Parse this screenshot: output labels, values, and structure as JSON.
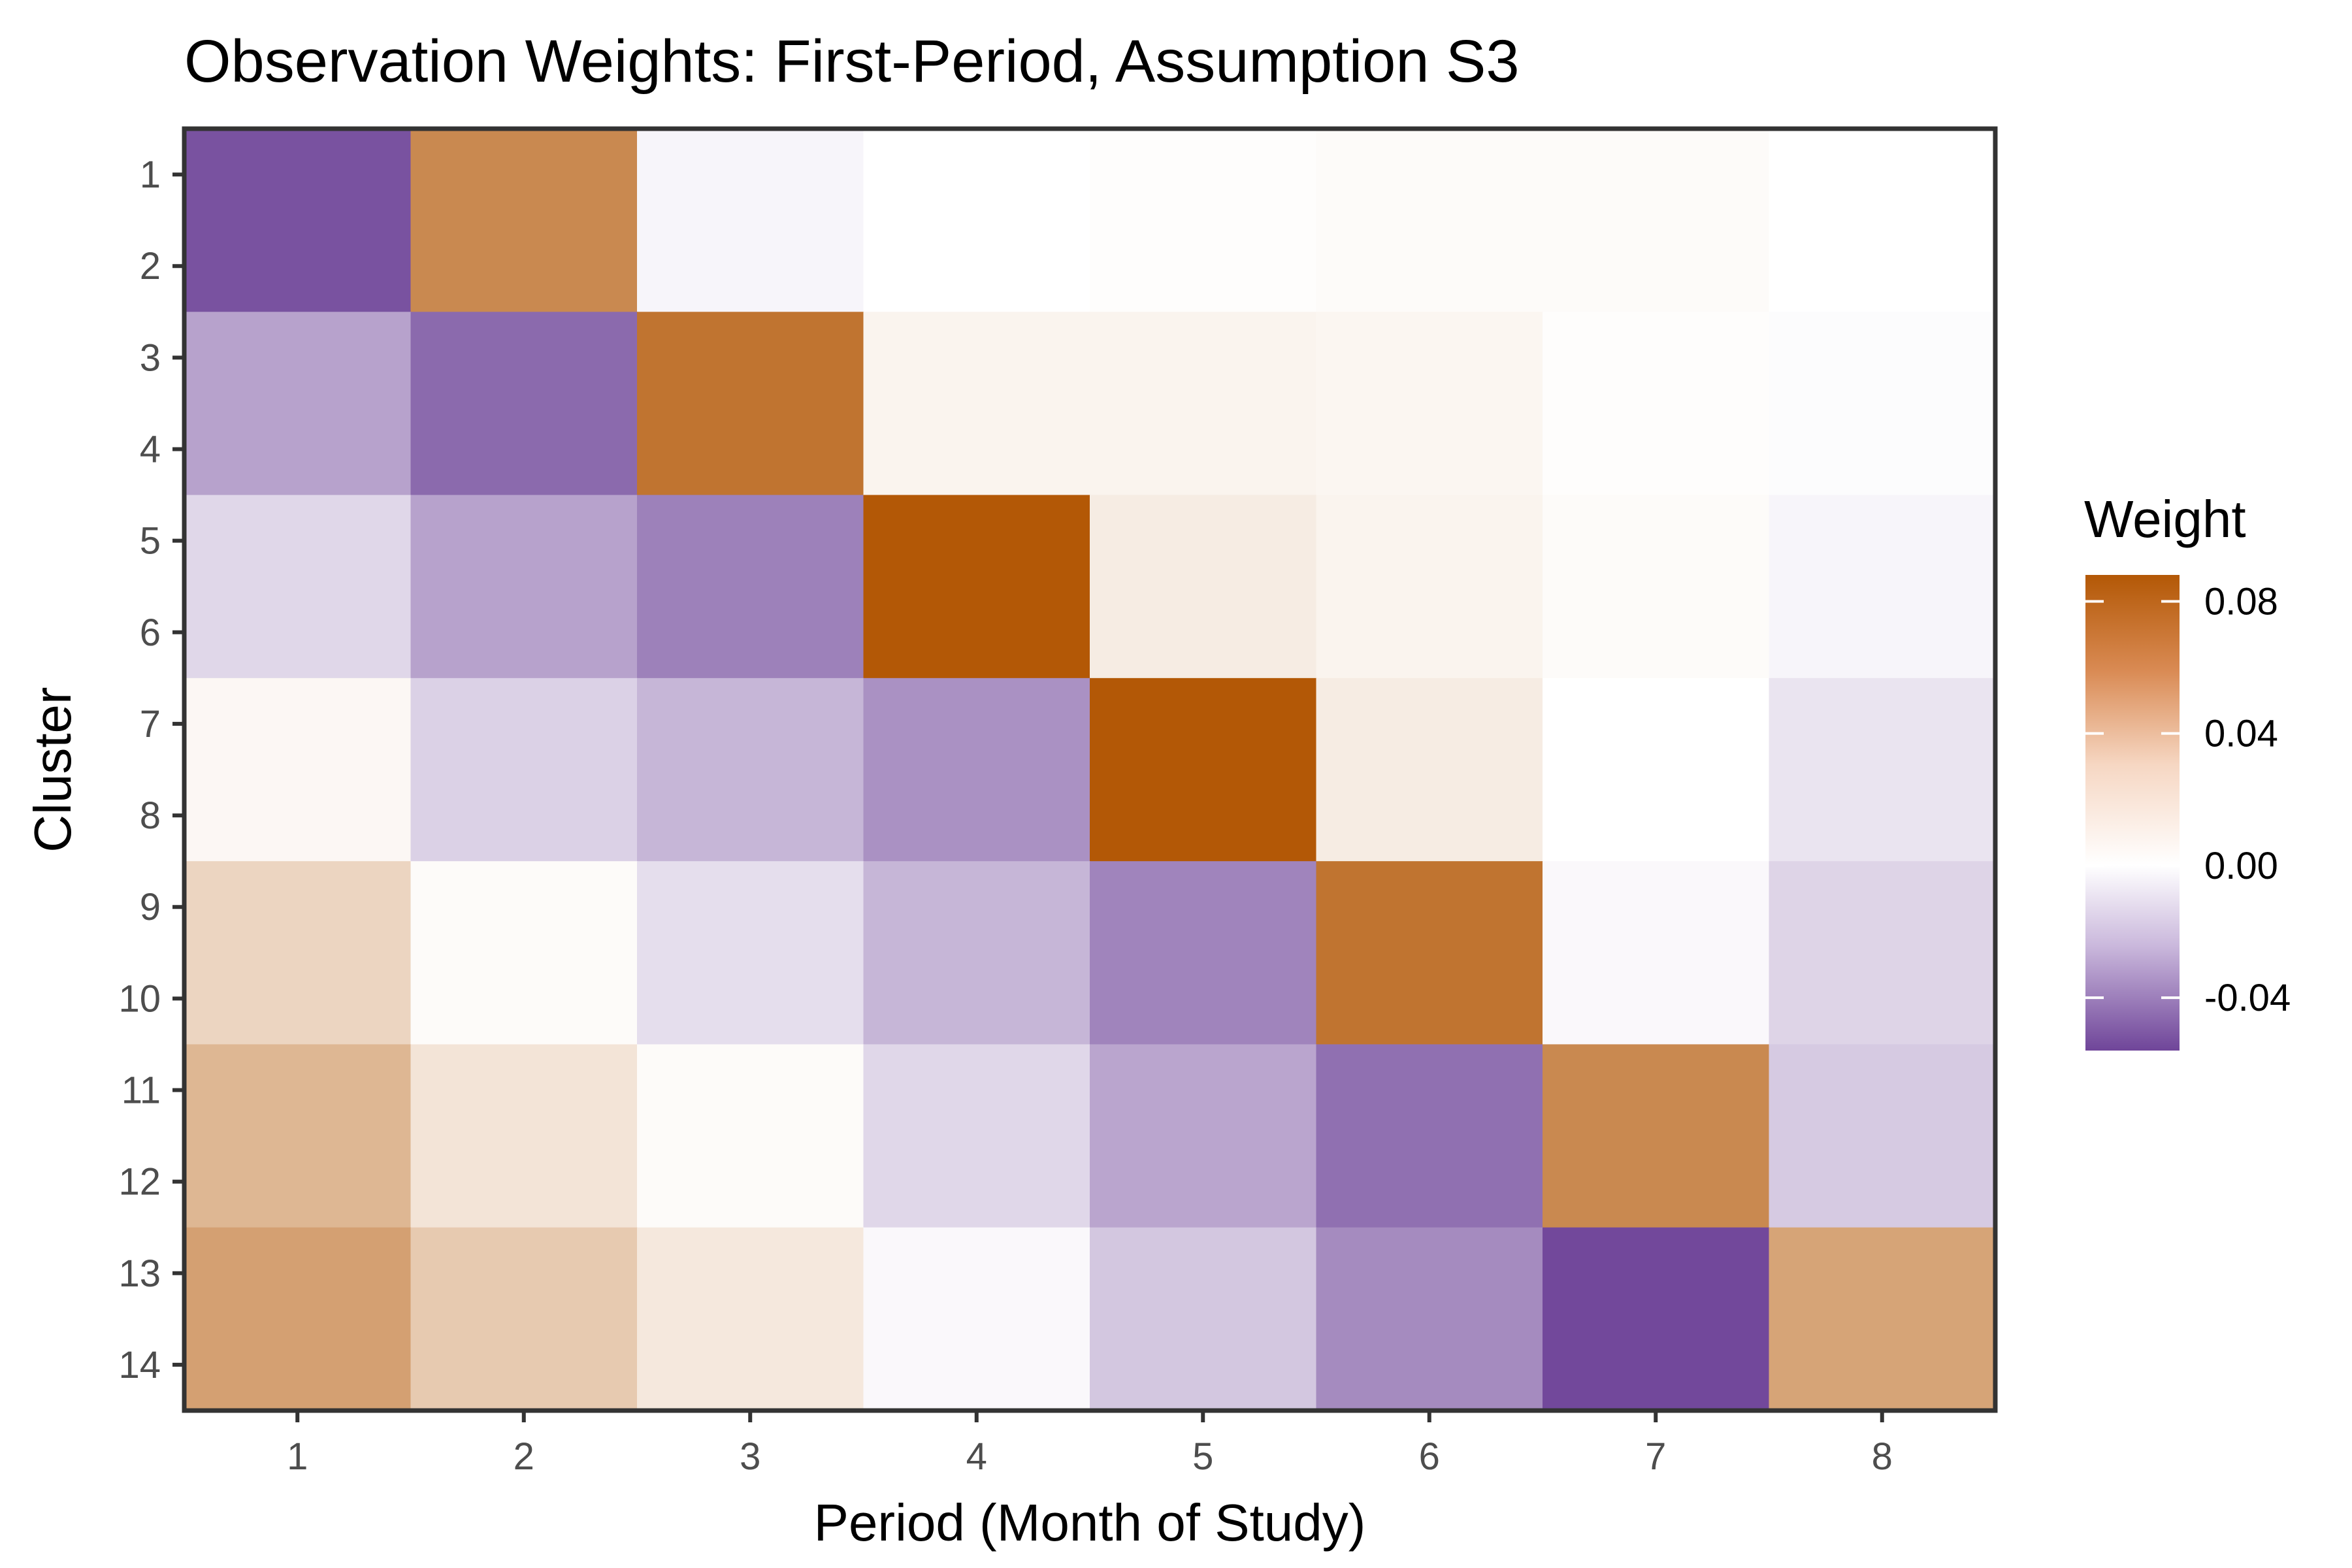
{
  "chart_data": {
    "type": "heatmap",
    "title": "Observation Weights: First-Period, Assumption S3",
    "xlabel": "Period (Month of Study)",
    "ylabel": "Cluster",
    "x": [
      "1",
      "2",
      "3",
      "4",
      "5",
      "6",
      "7",
      "8"
    ],
    "y": [
      "1",
      "2",
      "3",
      "4",
      "5",
      "6",
      "7",
      "8",
      "9",
      "10",
      "11",
      "12",
      "13",
      "14"
    ],
    "cell_rows": [
      {
        "clusters": [
          1,
          2
        ],
        "values": [
          -0.052,
          0.062,
          -0.003,
          0.0,
          0.001,
          0.002,
          0.002,
          0.0
        ]
      },
      {
        "clusters": [
          3,
          4
        ],
        "values": [
          -0.028,
          -0.045,
          0.073,
          0.006,
          0.006,
          0.005,
          0.001,
          -0.001
        ]
      },
      {
        "clusters": [
          5,
          6
        ],
        "values": [
          -0.012,
          -0.028,
          -0.038,
          0.088,
          0.01,
          0.006,
          0.002,
          -0.003
        ]
      },
      {
        "clusters": [
          7,
          8
        ],
        "values": [
          0.004,
          -0.014,
          -0.022,
          -0.033,
          0.088,
          0.01,
          0.0,
          -0.008
        ]
      },
      {
        "clusters": [
          9,
          10
        ],
        "values": [
          0.022,
          0.002,
          -0.01,
          -0.022,
          -0.037,
          0.073,
          -0.002,
          -0.013
        ]
      },
      {
        "clusters": [
          11,
          12
        ],
        "values": [
          0.038,
          0.014,
          0.002,
          -0.012,
          -0.027,
          -0.043,
          0.062,
          -0.016
        ]
      },
      {
        "clusters": [
          13,
          14
        ],
        "values": [
          0.05,
          0.028,
          0.012,
          -0.002,
          -0.017,
          -0.035,
          -0.055,
          0.048
        ]
      }
    ],
    "legend": {
      "title": "Weight",
      "position": "right",
      "ticks": [
        "0.08",
        "0.04",
        "0.00",
        "-0.04"
      ],
      "tick_values": [
        0.08,
        0.04,
        0.0,
        -0.04
      ],
      "range": [
        -0.056,
        0.088
      ]
    },
    "colors": {
      "high": "#b35806",
      "mid": "#ffffff",
      "low": "#6f4599"
    }
  }
}
